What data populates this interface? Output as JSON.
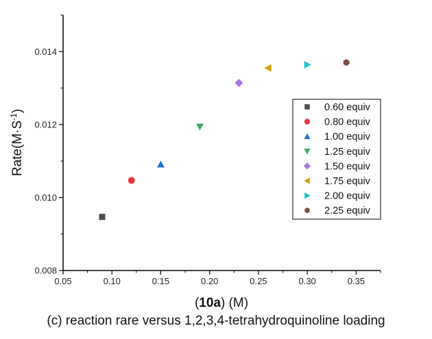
{
  "chart_data": {
    "type": "scatter",
    "title": "",
    "xlabel_bold": "10a",
    "xlabel_rest": " (M)",
    "ylabel": "Rate(M·S",
    "ylabel_sup": "-1",
    "ylabel_close": ")",
    "xlim": [
      0.05,
      0.375
    ],
    "ylim": [
      0.008,
      0.015
    ],
    "xticks": [
      "0.05",
      "0.10",
      "0.15",
      "0.20",
      "0.25",
      "0.30",
      "0.35"
    ],
    "yticks": [
      "0.008",
      "0.010",
      "0.012",
      "0.014"
    ],
    "grid": false,
    "legend_position": "right",
    "series": [
      {
        "name": "0.60 equiv",
        "marker": "square",
        "color": "#4d4d4d",
        "x": 0.09,
        "y": 0.00947
      },
      {
        "name": "0.80 equiv",
        "marker": "circle",
        "color": "#e8393c",
        "x": 0.12,
        "y": 0.01047
      },
      {
        "name": "1.00 equiv",
        "marker": "triangle-up",
        "color": "#1f6fd6",
        "x": 0.15,
        "y": 0.01091
      },
      {
        "name": "1.25 equiv",
        "marker": "triangle-down",
        "color": "#3aaa6a",
        "x": 0.19,
        "y": 0.01194
      },
      {
        "name": "1.50 equiv",
        "marker": "diamond",
        "color": "#a874e0",
        "x": 0.23,
        "y": 0.01314
      },
      {
        "name": "1.75 equiv",
        "marker": "triangle-left",
        "color": "#cf9e00",
        "x": 0.26,
        "y": 0.01355
      },
      {
        "name": "2.00 equiv",
        "marker": "triangle-right",
        "color": "#19c3cc",
        "x": 0.3,
        "y": 0.01364
      },
      {
        "name": "2.25 equiv",
        "marker": "hexagon",
        "color": "#7a4d44",
        "x": 0.34,
        "y": 0.0137
      }
    ]
  },
  "caption": "(c) reaction rare versus 1,2,3,4-tetrahydroquinoline loading"
}
